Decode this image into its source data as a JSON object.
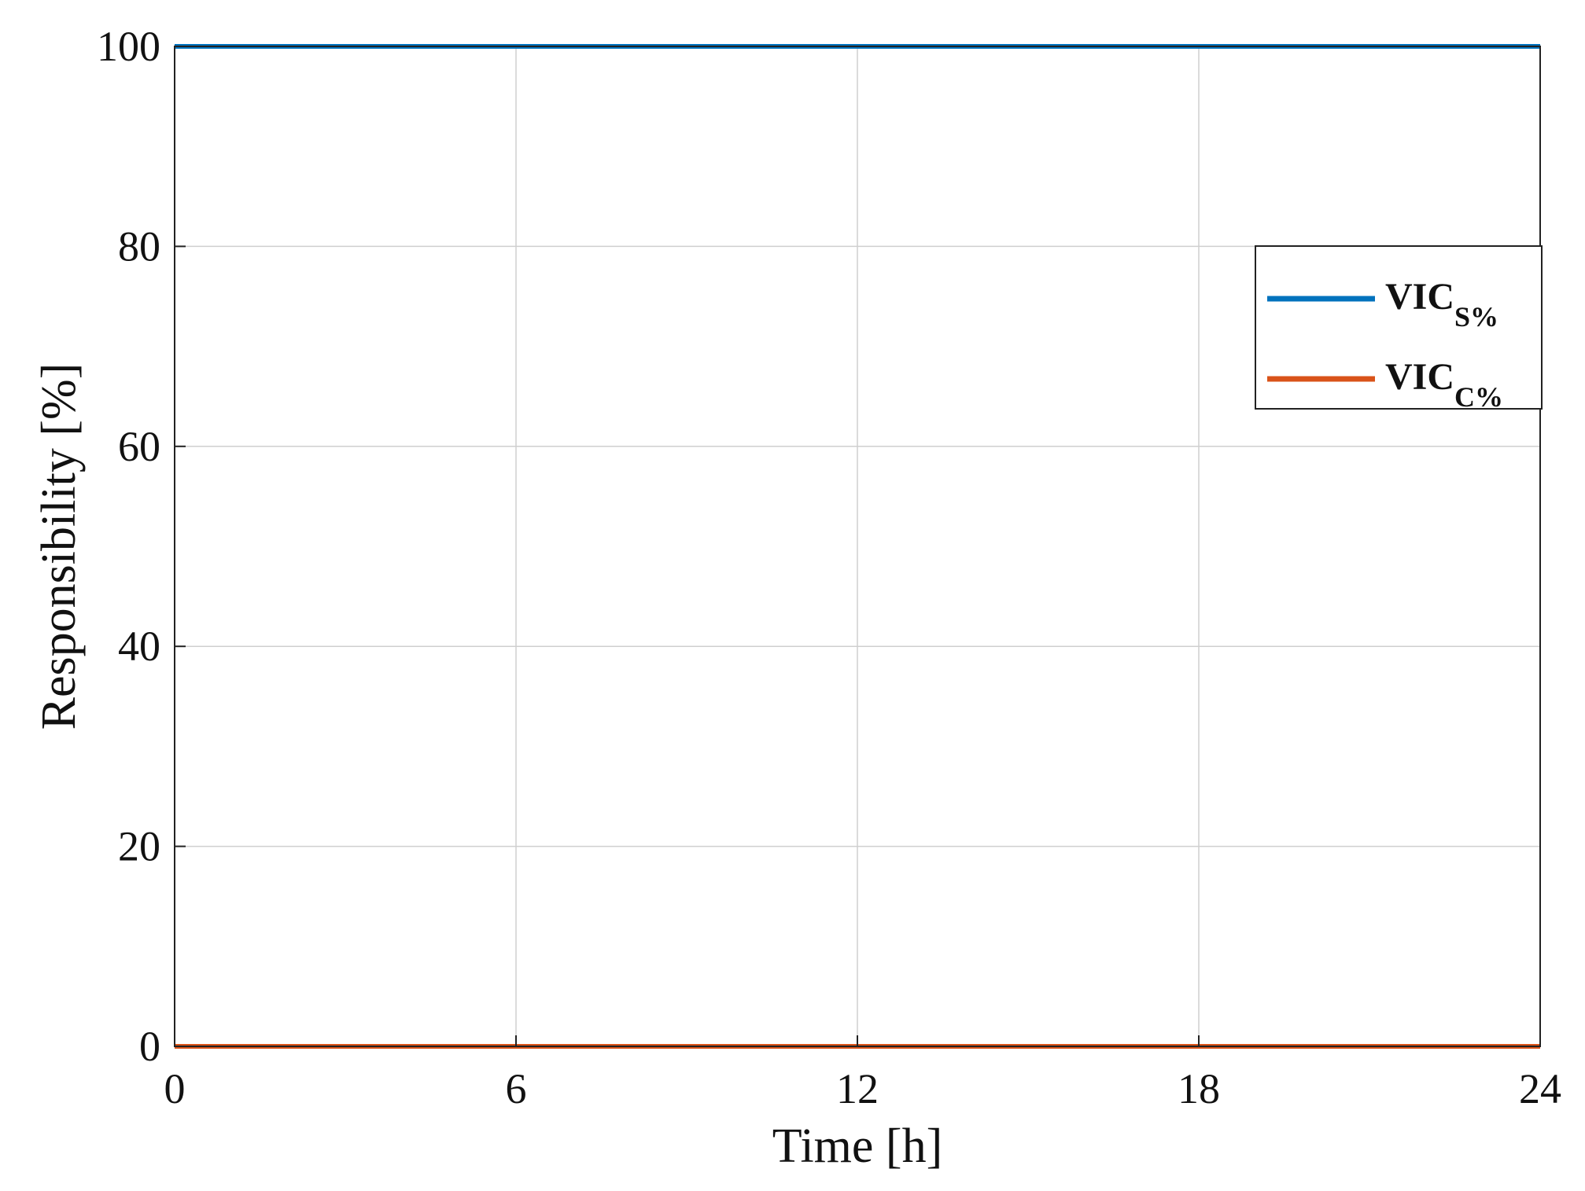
{
  "chart_data": {
    "type": "line",
    "title": "",
    "xlabel": "Time [h]",
    "ylabel": "Responsibility [%]",
    "xlim": [
      0,
      24
    ],
    "ylim": [
      0,
      100
    ],
    "xticks": [
      0,
      6,
      12,
      18,
      24
    ],
    "yticks": [
      0,
      20,
      40,
      60,
      80,
      100
    ],
    "xtick_labels": [
      "0",
      "6",
      "12",
      "18",
      "24"
    ],
    "ytick_labels": [
      "0",
      "20",
      "40",
      "60",
      "80",
      "100"
    ],
    "grid": true,
    "legend_position": "upper right",
    "series": [
      {
        "name": "VIC",
        "subscript": "S%",
        "color": "#0072BD",
        "x": [
          0,
          6,
          12,
          18,
          24
        ],
        "y": [
          100,
          100,
          100,
          100,
          100
        ]
      },
      {
        "name": "VIC",
        "subscript": "C%",
        "color": "#D95319",
        "x": [
          0,
          6,
          12,
          18,
          24
        ],
        "y": [
          0,
          0,
          0,
          0,
          0
        ]
      }
    ]
  }
}
